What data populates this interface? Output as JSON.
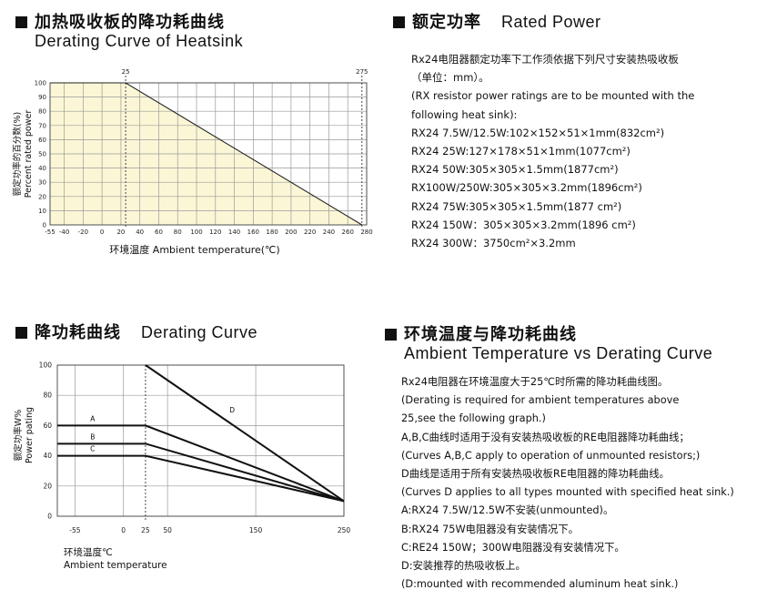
{
  "section1": {
    "title_cn": "加热吸收板的降功耗曲线",
    "title_en": "Derating Curve of Heatsink"
  },
  "section2": {
    "title_cn": "额定功率",
    "title_en": "Rated Power"
  },
  "section3": {
    "title_cn": "降功耗曲线",
    "title_en": "Derating Curve"
  },
  "section4": {
    "title_cn": "环境温度与降功耗曲线",
    "title_en": "Ambient Temperature vs Derating Curve"
  },
  "rated_power_lines": [
    "Rx24电阻器额定功率下工作须依据下列尺寸安装热吸收板",
    "（单位：mm）。",
    "(RX resistor power ratings are to be mounted with the",
    "following heat sink):",
    "RX24 7.5W/12.5W:102×152×51×1mm(832cm²)",
    "RX24 25W:127×178×51×1mm(1077cm²)",
    "RX24 50W:305×305×1.5mm(1877cm²)",
    "RX100W/250W:305×305×3.2mm(1896cm²)",
    "RX24 75W:305×305×1.5mm(1877 cm²)",
    "RX24 150W：305×305×3.2mm(1896 cm²)",
    "RX24 300W：3750cm²×3.2mm"
  ],
  "ambient_lines": [
    "Rx24电阻器在环境温度大于25℃时所需的降功耗曲线图。",
    "(Derating is required for ambient temperatures above",
    "25,see the following graph.)",
    "A,B,C曲线时适用于没有安装热吸收板的RE电阻器降功耗曲线；",
    "(Curves A,B,C apply to operation of unmounted resistors;)",
    "D曲线是适用于所有安装热吸收板RE电阻器的降功耗曲线。",
    "(Curves D applies to all types mounted with specified heat sink.)",
    "A:RX24 7.5W/12.5W不安装(unmounted)。",
    "B:RX24 75W电阻器没有安装情况下。",
    "C:RE24 150W；300W电阻器没有安装情况下。",
    "D:安装推荐的热吸收板上。",
    "(D:mounted with recommended aluminum heat sink.)"
  ],
  "chart_data": [
    {
      "type": "area",
      "title": "",
      "xlabel": "环境温度 Ambient temperature(℃)",
      "ylabel_cn": "额定功率的百分数(%)",
      "ylabel_en": "Percent rated power",
      "x_ticks": [
        -55,
        -40,
        -20,
        0,
        20,
        40,
        60,
        80,
        100,
        120,
        140,
        160,
        180,
        200,
        220,
        240,
        260,
        280
      ],
      "x_tick_labels": [
        "-55",
        "-40",
        "-20",
        "0",
        "20",
        "40",
        "60",
        "80",
        "100",
        "120",
        "140",
        "160",
        "180",
        "200",
        "220",
        "240",
        "260",
        "280"
      ],
      "y_ticks": [
        0,
        10,
        20,
        30,
        40,
        50,
        60,
        70,
        80,
        90,
        100
      ],
      "y_tick_labels": [
        "0",
        "10",
        "20",
        "30",
        "40",
        "50",
        "60",
        "70",
        "80",
        "90",
        "100"
      ],
      "xlim": [
        -55,
        280
      ],
      "ylim": [
        0,
        100
      ],
      "top_markers": [
        {
          "x": 25,
          "label": "25"
        },
        {
          "x": 275,
          "label": "275"
        }
      ],
      "series": [
        {
          "x": [
            -55,
            25,
            275
          ],
          "y": [
            100,
            100,
            0
          ]
        }
      ],
      "colors": {
        "fill": "#fbf7d6",
        "line": "#222222",
        "grid": "#9a9a9a"
      },
      "grid": true
    },
    {
      "type": "line",
      "title": "",
      "xlabel_cn": "环境温度℃",
      "xlabel_en": "Ambient temperature",
      "ylabel_cn": "额定功率W%",
      "ylabel_en": "Power pating",
      "x_ticks": [
        -55,
        0,
        25,
        50,
        150,
        250
      ],
      "x_tick_labels": [
        "-55",
        "0",
        "25",
        "50",
        "150",
        "250"
      ],
      "y_ticks": [
        0,
        20,
        40,
        60,
        80,
        100
      ],
      "y_tick_labels": [
        "0",
        "20",
        "40",
        "60",
        "80",
        "100"
      ],
      "xlim": [
        -75,
        250
      ],
      "ylim": [
        0,
        100
      ],
      "marker_x": 25,
      "series": [
        {
          "name": "A",
          "x": [
            -75,
            25,
            250
          ],
          "y": [
            60,
            60,
            10
          ]
        },
        {
          "name": "B",
          "x": [
            -75,
            25,
            250
          ],
          "y": [
            48,
            48,
            10
          ]
        },
        {
          "name": "C",
          "x": [
            -75,
            25,
            250
          ],
          "y": [
            40,
            40,
            10
          ]
        },
        {
          "name": "D",
          "x": [
            25,
            250
          ],
          "y": [
            100,
            10
          ]
        }
      ],
      "colors": {
        "line": "#111111",
        "grid": "#9a9a9a"
      },
      "grid": true
    }
  ]
}
